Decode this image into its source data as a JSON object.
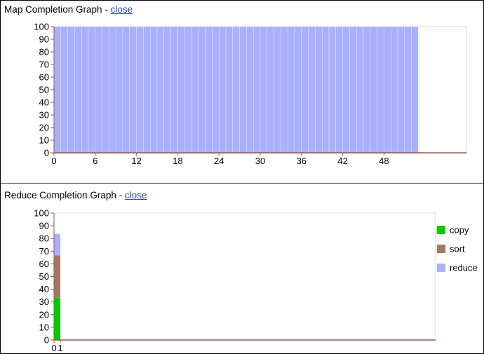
{
  "map_graph": {
    "title_prefix": "Map Completion Graph - ",
    "close_label": "close",
    "colors": {
      "bar": "#aab0ff",
      "bar_edge": "#ffffff",
      "axis": "#8a5a4a",
      "frame": "#dddddd"
    }
  },
  "reduce_graph": {
    "title_prefix": "Reduce Completion Graph - ",
    "close_label": "close",
    "colors": {
      "copy": "#00cc00",
      "sort": "#a07868",
      "reduce": "#aab0ff",
      "axis": "#8a5a4a",
      "frame": "#dddddd"
    }
  },
  "chart_data": [
    {
      "type": "bar",
      "title": "Map Completion Graph",
      "xlabel": "",
      "ylabel": "",
      "ylim": [
        0,
        100
      ],
      "yticks": [
        0,
        10,
        20,
        30,
        40,
        50,
        60,
        70,
        80,
        90,
        100
      ],
      "xticks": [
        0,
        6,
        12,
        18,
        24,
        30,
        36,
        42,
        48
      ],
      "xlim": [
        0,
        60
      ],
      "grid": false,
      "series": [
        {
          "values": [
            100,
            100,
            100,
            100,
            100,
            100,
            100,
            100,
            100,
            100,
            100,
            100,
            100,
            100,
            100,
            100,
            100,
            100,
            100,
            100,
            100,
            100,
            100,
            100,
            100,
            100,
            100,
            100,
            100,
            100,
            100,
            100,
            100,
            100,
            100,
            100,
            100,
            100,
            100,
            100,
            100,
            100,
            100,
            100,
            100,
            100,
            100,
            100,
            100,
            100,
            100,
            100,
            100
          ]
        }
      ]
    },
    {
      "type": "bar",
      "stacked": true,
      "title": "Reduce Completion Graph",
      "xlabel": "",
      "ylabel": "",
      "ylim": [
        0,
        100
      ],
      "yticks": [
        0,
        10,
        20,
        30,
        40,
        50,
        60,
        70,
        80,
        90,
        100
      ],
      "xticks": [
        0,
        1
      ],
      "xlim": [
        0,
        60
      ],
      "grid": false,
      "legend": "right",
      "series": [
        {
          "name": "copy",
          "values": [
            33.3
          ]
        },
        {
          "name": "sort",
          "values": [
            33.3
          ]
        },
        {
          "name": "reduce",
          "values": [
            17
          ]
        }
      ]
    }
  ]
}
